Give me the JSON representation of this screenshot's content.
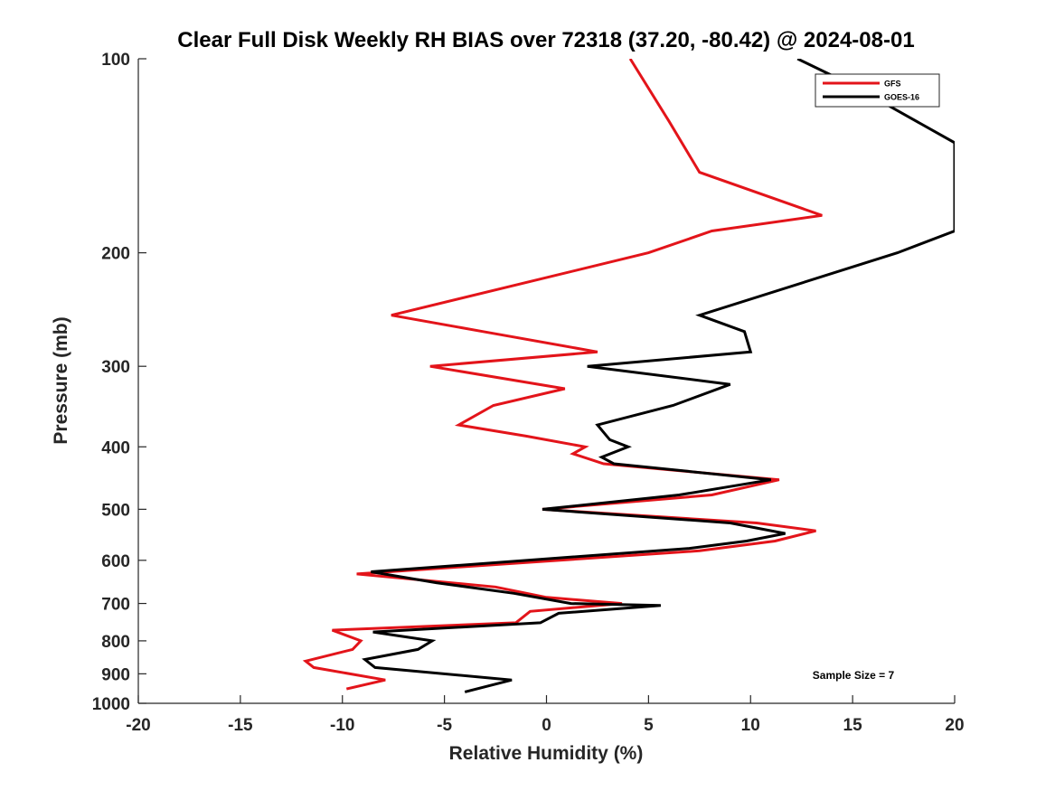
{
  "chart_data": {
    "type": "line",
    "title": "Clear Full Disk Weekly RH BIAS over 72318 (37.20, -80.42) @ 2024-08-01",
    "xlabel": "Relative Humidity (%)",
    "ylabel": "Pressure (mb)",
    "xlim": [
      -20,
      20
    ],
    "ylim": [
      1000,
      100
    ],
    "yscale": "log",
    "y_reversed": true,
    "grid": false,
    "legend_position": "top-right",
    "x_ticks": [
      "-20",
      "-15",
      "-10",
      "-5",
      "0",
      "5",
      "10",
      "15",
      "20"
    ],
    "y_ticks": [
      "100",
      "200",
      "300",
      "400",
      "500",
      "600",
      "700",
      "800",
      "900",
      "1000"
    ],
    "annotation": "Sample Size = 7",
    "series": [
      {
        "name": "GFS",
        "color": "#e3141a",
        "points": [
          [
            4.1,
            100
          ],
          [
            6.0,
            125
          ],
          [
            7.5,
            150
          ],
          [
            13.5,
            175
          ],
          [
            8.1,
            185
          ],
          [
            5.0,
            200
          ],
          [
            -7.6,
            250
          ],
          [
            -3.1,
            265
          ],
          [
            2.5,
            285
          ],
          [
            -5.7,
            300
          ],
          [
            0.9,
            325
          ],
          [
            -2.6,
            345
          ],
          [
            -4.3,
            370
          ],
          [
            -1.0,
            385
          ],
          [
            1.9,
            400
          ],
          [
            1.3,
            410
          ],
          [
            2.8,
            425
          ],
          [
            11.4,
            450
          ],
          [
            8.1,
            475
          ],
          [
            -0.2,
            500
          ],
          [
            10.3,
            525
          ],
          [
            13.2,
            540
          ],
          [
            11.2,
            560
          ],
          [
            7.5,
            580
          ],
          [
            -9.3,
            630
          ],
          [
            -2.5,
            660
          ],
          [
            0.0,
            685
          ],
          [
            3.7,
            700
          ],
          [
            -0.8,
            720
          ],
          [
            -1.5,
            750
          ],
          [
            -10.5,
            770
          ],
          [
            -9.1,
            800
          ],
          [
            -9.5,
            825
          ],
          [
            -11.8,
            860
          ],
          [
            -11.4,
            880
          ],
          [
            -7.9,
            920
          ],
          [
            -9.8,
            950
          ]
        ]
      },
      {
        "name": "GOES-16",
        "color": "#000000",
        "points": [
          [
            12.3,
            100
          ],
          [
            15.0,
            110
          ],
          [
            20.0,
            135
          ],
          [
            20.0,
            185
          ],
          [
            17.2,
            200
          ],
          [
            7.5,
            250
          ],
          [
            9.7,
            265
          ],
          [
            10.0,
            285
          ],
          [
            2.0,
            300
          ],
          [
            9.0,
            320
          ],
          [
            6.2,
            345
          ],
          [
            2.5,
            370
          ],
          [
            3.1,
            390
          ],
          [
            4.0,
            400
          ],
          [
            2.7,
            415
          ],
          [
            3.3,
            425
          ],
          [
            11.0,
            450
          ],
          [
            6.5,
            475
          ],
          [
            -0.2,
            500
          ],
          [
            9.0,
            525
          ],
          [
            11.7,
            545
          ],
          [
            9.8,
            560
          ],
          [
            7.0,
            575
          ],
          [
            -8.6,
            625
          ],
          [
            -5.4,
            650
          ],
          [
            -1.6,
            675
          ],
          [
            1.2,
            700
          ],
          [
            5.6,
            705
          ],
          [
            0.6,
            725
          ],
          [
            -0.3,
            750
          ],
          [
            -8.5,
            775
          ],
          [
            -5.6,
            800
          ],
          [
            -6.3,
            825
          ],
          [
            -8.9,
            855
          ],
          [
            -8.4,
            880
          ],
          [
            -1.7,
            920
          ],
          [
            -4.0,
            960
          ]
        ]
      }
    ]
  }
}
